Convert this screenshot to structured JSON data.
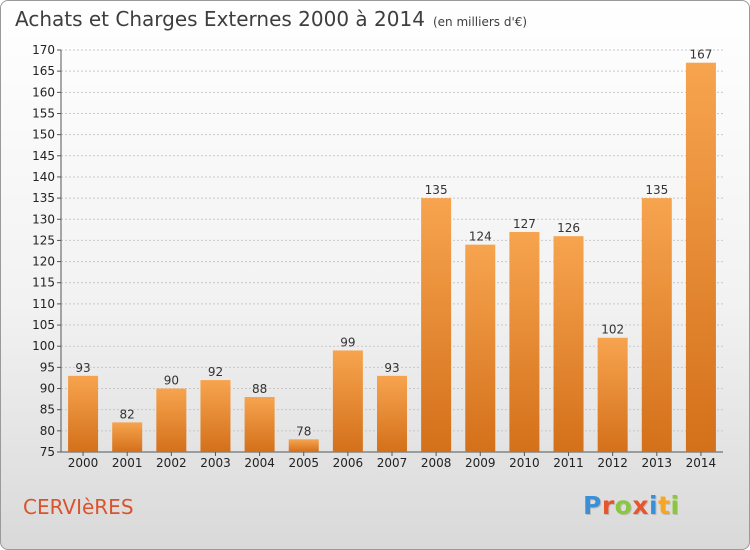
{
  "header": {
    "title": "Achats et Charges Externes 2000 à 2014",
    "subtitle": "(en milliers d'€)"
  },
  "footer": {
    "commune": "CERVIèRES",
    "logo_letters": [
      {
        "char": "P",
        "color": "#3b8fd6"
      },
      {
        "char": "r",
        "color": "#e8542b"
      },
      {
        "char": "o",
        "color": "#8cc63f"
      },
      {
        "char": "x",
        "color": "#e8542b"
      },
      {
        "char": "i",
        "color": "#3b8fd6"
      },
      {
        "char": "t",
        "color": "#f5a623"
      },
      {
        "char": "i",
        "color": "#8cc63f"
      }
    ]
  },
  "colors": {
    "bar_light": "#f7a44f",
    "bar_dark": "#d4701a",
    "grid": "#c8c8c8",
    "axis": "#555555"
  },
  "chart_data": {
    "type": "bar",
    "title": "Achats et Charges Externes 2000 à 2014",
    "subtitle": "(en milliers d'€)",
    "categories": [
      "2000",
      "2001",
      "2002",
      "2003",
      "2004",
      "2005",
      "2006",
      "2007",
      "2008",
      "2009",
      "2010",
      "2011",
      "2012",
      "2013",
      "2014"
    ],
    "values": [
      93,
      82,
      90,
      92,
      88,
      78,
      99,
      93,
      135,
      124,
      127,
      126,
      102,
      135,
      167
    ],
    "ylim": [
      75,
      170
    ],
    "yticks": [
      75,
      80,
      85,
      90,
      95,
      100,
      105,
      110,
      115,
      120,
      125,
      130,
      135,
      140,
      145,
      150,
      155,
      160,
      165,
      170
    ],
    "grid": true,
    "xlabel": "",
    "ylabel": ""
  }
}
